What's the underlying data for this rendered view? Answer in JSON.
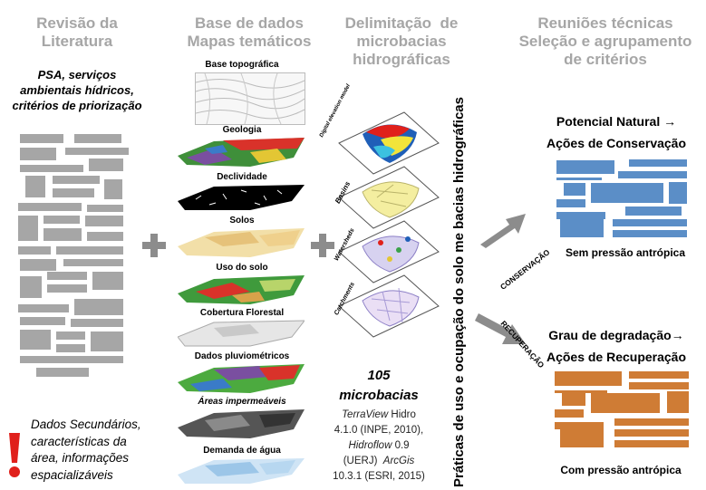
{
  "col1": {
    "title_l1": "Revisão da",
    "title_l2": "Literatura",
    "sub_l1": "PSA, serviços",
    "sub_l2": "ambientais hídricos,",
    "sub_l3": "critérios de priorização",
    "note_l1": "Dados Secundários,",
    "note_l2": "características da",
    "note_l3": "área, informações",
    "note_l4": "espacializáveis",
    "exclamation": "!"
  },
  "col2": {
    "title_l1": "Base de dados",
    "title_l2": "Mapas temáticos",
    "layers": [
      "Base topográfica",
      "Geologia",
      "Declividade",
      "Solos",
      "Uso do solo",
      "Cobertura Florestal",
      "Dados pluviométricos",
      "Áreas impermeáveis",
      "Demanda de água"
    ]
  },
  "col3": {
    "title_l1": "Delimitação  de",
    "title_l2": "microbacias",
    "title_l3": "hidrográficas",
    "stack_labels": [
      "Digital elevation model",
      "Basins",
      "Watersheds",
      "Catchments"
    ],
    "count": "105",
    "count_label": "microbacias",
    "tool1_name": "TerraView",
    "tool1_rest": " Hidro",
    "tool1_ver": "4.1.0 (INPE, 2010),",
    "tool2_name": "Hidroflow",
    "tool2_ver": " 0.9",
    "tool3_org": "(UERJ)  ",
    "tool3_name": "ArcGis",
    "tool3_ver": "10.3.1 (ESRI, 2015)"
  },
  "vertical_label": "Práticas de uso e ocupação do solo me bacias hidrográficas",
  "col4": {
    "title_l1": "Reuniões técnicas",
    "title_l2": "Seleção e agrupamento",
    "title_l3": "de critérios",
    "arrow_up_label": "CONSERVAÇÃO",
    "arrow_down_label": "RECUPERAÇÃO",
    "top_head_l1": "Potencial Natural →",
    "top_head_l2": "Ações de Conservação",
    "top_caption": "Sem pressão antrópica",
    "bottom_head_l1": "Grau de degradação→",
    "bottom_head_l2": "Ações de Recuperação",
    "bottom_caption": "Com pressão antrópica"
  },
  "colors": {
    "title_gray": "#a6a6a6",
    "doc_gray": "#a6a6a6",
    "blue": "#5b8ec7",
    "orange": "#cf7c35",
    "alert_red": "#e0201b",
    "arrow_gray": "#8c8c8c"
  }
}
